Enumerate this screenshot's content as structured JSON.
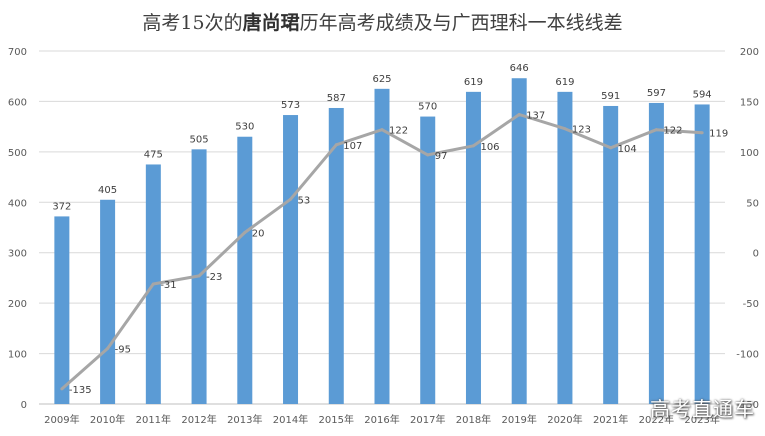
{
  "title": {
    "prefix": "高考15次的",
    "name": "唐尚珺",
    "suffix": "历年高考成绩及与广西理科一本线线差"
  },
  "watermark": "高考直通车",
  "colors": {
    "bar": "#5b9bd5",
    "line": "#a6a6a6",
    "grid": "#d9d9d9",
    "axis_text": "#595959",
    "label_text": "#404040"
  },
  "chart_data": {
    "type": "bar",
    "categories": [
      "2009年",
      "2010年",
      "2011年",
      "2012年",
      "2013年",
      "2014年",
      "2015年",
      "2016年",
      "2017年",
      "2018年",
      "2019年",
      "2020年",
      "2021年",
      "2022年",
      "2023年"
    ],
    "series": [
      {
        "type": "bar",
        "axis": "left",
        "values": [
          372,
          405,
          475,
          505,
          530,
          573,
          587,
          625,
          570,
          619,
          646,
          619,
          591,
          597,
          594
        ]
      },
      {
        "type": "line",
        "axis": "right",
        "values": [
          -135,
          -95,
          -31,
          -23,
          20,
          53,
          107,
          122,
          97,
          106,
          137,
          123,
          104,
          122,
          119
        ]
      }
    ],
    "y_left": {
      "min": 0,
      "max": 700,
      "ticks": [
        0,
        100,
        200,
        300,
        400,
        500,
        600,
        700
      ]
    },
    "y_right": {
      "min": -150,
      "max": 200,
      "ticks": [
        -150,
        -100,
        -50,
        0,
        50,
        100,
        150,
        200
      ]
    },
    "grid": true,
    "legend": "none"
  }
}
